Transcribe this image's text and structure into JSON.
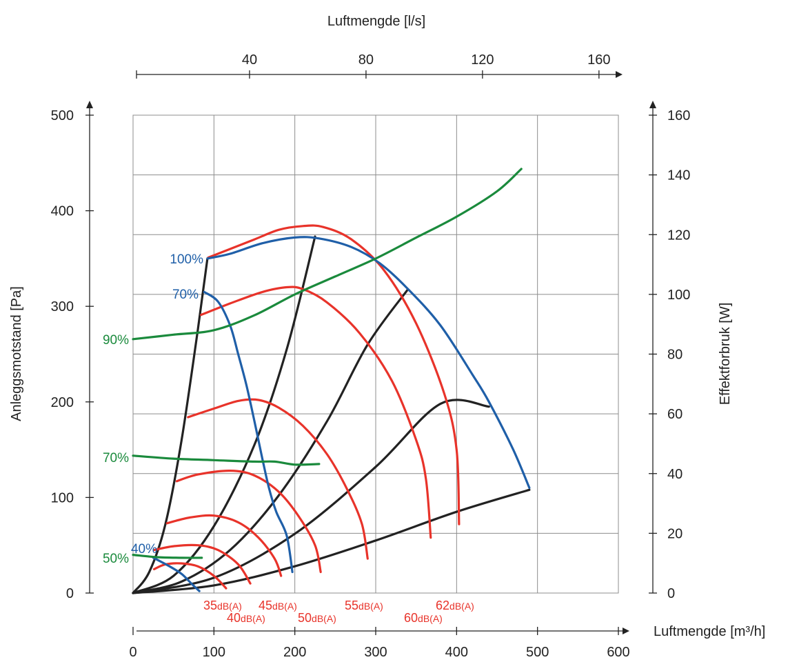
{
  "chart_data": {
    "type": "line",
    "title": "",
    "xlabel_bottom": "Luftmengde [m³/h]",
    "xlabel_top": "Luftmengde [l/s]",
    "ylabel_left": "Anleggsmotstand [Pa]",
    "ylabel_right": "Effektforbruk [W]",
    "xlim": [
      0,
      600
    ],
    "ylim_left": [
      0,
      500
    ],
    "ylim_right": [
      0,
      160
    ],
    "xlim_top": [
      0,
      166.7
    ],
    "x_ticks": [
      "0",
      "100",
      "200",
      "300",
      "400",
      "500",
      "600"
    ],
    "y_left_ticks": [
      "0",
      "100",
      "200",
      "300",
      "400",
      "500"
    ],
    "y_right_ticks": [
      "0",
      "20",
      "40",
      "60",
      "80",
      "100",
      "120",
      "140",
      "160"
    ],
    "top_ticks": [
      "40",
      "80",
      "120",
      "160"
    ],
    "grid": true,
    "colors": {
      "fan": "#1f5fa8",
      "power": "#1a8a3c",
      "sound": "#e8332a",
      "system": "#222222"
    },
    "fan_curves": [
      {
        "name": "100%",
        "points": [
          [
            92,
            350
          ],
          [
            120,
            355
          ],
          [
            160,
            366
          ],
          [
            200,
            372
          ],
          [
            230,
            371
          ],
          [
            270,
            362
          ],
          [
            305,
            345
          ],
          [
            340,
            318
          ],
          [
            380,
            280
          ],
          [
            420,
            228
          ],
          [
            440,
            200
          ],
          [
            470,
            150
          ],
          [
            490,
            110
          ]
        ]
      },
      {
        "name": "70%",
        "points": [
          [
            88,
            315
          ],
          [
            105,
            305
          ],
          [
            120,
            280
          ],
          [
            130,
            250
          ],
          [
            140,
            218
          ],
          [
            150,
            180
          ],
          [
            160,
            140
          ],
          [
            168,
            110
          ],
          [
            177,
            85
          ],
          [
            190,
            60
          ],
          [
            197,
            22
          ]
        ]
      },
      {
        "name": "40%",
        "points": [
          [
            25,
            37
          ],
          [
            45,
            28
          ],
          [
            60,
            20
          ],
          [
            72,
            10
          ],
          [
            82,
            2
          ]
        ]
      }
    ],
    "power_curves": [
      {
        "name": "90%",
        "unit": "W",
        "points": [
          [
            0,
            85
          ],
          [
            50,
            86.5
          ],
          [
            100,
            88
          ],
          [
            150,
            93
          ],
          [
            200,
            100
          ],
          [
            250,
            106
          ],
          [
            300,
            112
          ],
          [
            350,
            119
          ],
          [
            400,
            126
          ],
          [
            450,
            134.5
          ],
          [
            480,
            142
          ]
        ]
      },
      {
        "name": "70%",
        "unit": "W",
        "points": [
          [
            0,
            46
          ],
          [
            50,
            45
          ],
          [
            100,
            44.5
          ],
          [
            150,
            44
          ],
          [
            175,
            44
          ],
          [
            200,
            43
          ],
          [
            230,
            43.2
          ]
        ]
      },
      {
        "name": "50%",
        "unit": "W",
        "points": [
          [
            0,
            12.8
          ],
          [
            30,
            12
          ],
          [
            60,
            11.8
          ],
          [
            85,
            11.8
          ]
        ]
      }
    ],
    "sound_curves": [
      {
        "name": "35dB(A)",
        "points": [
          [
            26,
            25
          ],
          [
            40,
            30
          ],
          [
            60,
            31
          ],
          [
            80,
            28
          ],
          [
            100,
            18
          ],
          [
            115,
            5
          ]
        ]
      },
      {
        "name": "40dB(A)",
        "points": [
          [
            26,
            45
          ],
          [
            50,
            49
          ],
          [
            80,
            50
          ],
          [
            105,
            45
          ],
          [
            130,
            30
          ],
          [
            145,
            10
          ]
        ]
      },
      {
        "name": "45dB(A)",
        "points": [
          [
            42,
            73
          ],
          [
            70,
            79
          ],
          [
            100,
            81
          ],
          [
            130,
            74
          ],
          [
            155,
            58
          ],
          [
            175,
            36
          ],
          [
            183,
            18
          ]
        ]
      },
      {
        "name": "50dB(A)",
        "points": [
          [
            54,
            117
          ],
          [
            80,
            124
          ],
          [
            120,
            128
          ],
          [
            150,
            123
          ],
          [
            180,
            106
          ],
          [
            205,
            80
          ],
          [
            225,
            50
          ],
          [
            232,
            22
          ]
        ]
      },
      {
        "name": "55dB(A)",
        "points": [
          [
            68,
            184
          ],
          [
            100,
            193
          ],
          [
            130,
            201
          ],
          [
            155,
            202
          ],
          [
            180,
            194
          ],
          [
            210,
            175
          ],
          [
            240,
            145
          ],
          [
            265,
            108
          ],
          [
            283,
            72
          ],
          [
            290,
            36
          ]
        ]
      },
      {
        "name": "60dB(A)",
        "points": [
          [
            84,
            291
          ],
          [
            120,
            303
          ],
          [
            160,
            315
          ],
          [
            190,
            320
          ],
          [
            210,
            318
          ],
          [
            240,
            304
          ],
          [
            280,
            272
          ],
          [
            320,
            222
          ],
          [
            350,
            160
          ],
          [
            362,
            120
          ],
          [
            368,
            58
          ]
        ]
      },
      {
        "name": "62dB(A)",
        "points": [
          [
            93,
            351
          ],
          [
            150,
            370
          ],
          [
            180,
            380
          ],
          [
            210,
            384
          ],
          [
            235,
            383
          ],
          [
            270,
            370
          ],
          [
            310,
            338
          ],
          [
            350,
            282
          ],
          [
            385,
            208
          ],
          [
            400,
            150
          ],
          [
            403,
            72
          ]
        ]
      }
    ],
    "system_curves": [
      {
        "points": [
          [
            0,
            0
          ],
          [
            20,
            22
          ],
          [
            40,
            72
          ],
          [
            60,
            160
          ],
          [
            80,
            275
          ],
          [
            92,
            350
          ]
        ]
      },
      {
        "points": [
          [
            0,
            0
          ],
          [
            50,
            18
          ],
          [
            100,
            70
          ],
          [
            150,
            155
          ],
          [
            190,
            255
          ],
          [
            225,
            373
          ]
        ]
      },
      {
        "points": [
          [
            0,
            0
          ],
          [
            60,
            12
          ],
          [
            120,
            45
          ],
          [
            180,
            102
          ],
          [
            240,
            180
          ],
          [
            290,
            260
          ],
          [
            340,
            318
          ]
        ]
      },
      {
        "points": [
          [
            0,
            0
          ],
          [
            100,
            16
          ],
          [
            200,
            62
          ],
          [
            300,
            132
          ],
          [
            380,
            198
          ],
          [
            440,
            195
          ]
        ]
      },
      {
        "points": [
          [
            0,
            0
          ],
          [
            100,
            8
          ],
          [
            200,
            28
          ],
          [
            300,
            55
          ],
          [
            400,
            85
          ],
          [
            490,
            108
          ]
        ]
      }
    ],
    "fan_labels": [
      "100%",
      "70%",
      "40%"
    ],
    "power_labels": [
      "90%",
      "70%",
      "50%"
    ],
    "sound_labels": [
      {
        "num": "35",
        "unit": "dB(A)"
      },
      {
        "num": "40",
        "unit": "dB(A)"
      },
      {
        "num": "45",
        "unit": "dB(A)"
      },
      {
        "num": "50",
        "unit": "dB(A)"
      },
      {
        "num": "55",
        "unit": "dB(A)"
      },
      {
        "num": "60",
        "unit": "dB(A)"
      },
      {
        "num": "62",
        "unit": "dB(A)"
      }
    ]
  }
}
